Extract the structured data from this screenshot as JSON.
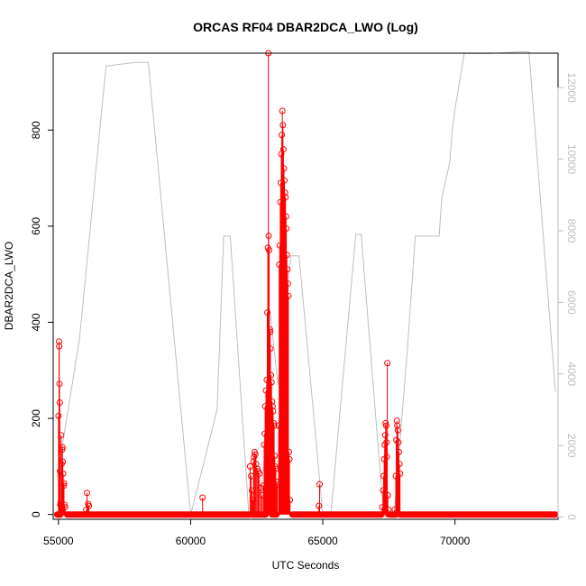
{
  "chart_data": {
    "type": "scatter",
    "title": "ORCAS RF04 DBAR2DCA_LWO (Log)",
    "xlabel": "UTC Seconds",
    "ylabel": "DBAR2DCA_LWO",
    "y2label": "",
    "xlim": [
      54800,
      73900
    ],
    "ylim": [
      -10,
      960
    ],
    "y2lim": [
      -60,
      12960
    ],
    "x_ticks": [
      55000,
      60000,
      65000,
      70000
    ],
    "y_ticks": [
      0,
      200,
      400,
      600,
      800
    ],
    "y2_ticks": [
      0,
      2000,
      4000,
      6000,
      8000,
      10000,
      12000
    ],
    "grid": false,
    "legend": "none",
    "colors": {
      "series": "#ff0000",
      "secondary": "#bebebe",
      "axis": "#000000"
    },
    "series": [
      {
        "axis": "left",
        "marker": "open-circle",
        "baseline_segments": [
          [
            54950,
            55080
          ],
          [
            55330,
            62230
          ],
          [
            62330,
            62840
          ],
          [
            63080,
            63250
          ],
          [
            63850,
            67220
          ],
          [
            67480,
            67780
          ],
          [
            67920,
            73800
          ]
        ],
        "points": [
          [
            55000,
            205
          ],
          [
            55020,
            360
          ],
          [
            55030,
            350
          ],
          [
            55040,
            272
          ],
          [
            55050,
            233
          ],
          [
            55060,
            90
          ],
          [
            55070,
            20
          ],
          [
            55080,
            25
          ],
          [
            55100,
            165
          ],
          [
            55120,
            105
          ],
          [
            55140,
            135
          ],
          [
            55150,
            140
          ],
          [
            55160,
            110
          ],
          [
            55180,
            85
          ],
          [
            55200,
            60
          ],
          [
            55210,
            65
          ],
          [
            55230,
            20
          ],
          [
            55250,
            15
          ],
          [
            56050,
            10
          ],
          [
            56080,
            45
          ],
          [
            56120,
            22
          ],
          [
            56150,
            18
          ],
          [
            60450,
            35
          ],
          [
            62250,
            100
          ],
          [
            62290,
            80
          ],
          [
            62320,
            50
          ],
          [
            62350,
            30
          ],
          [
            62380,
            110
          ],
          [
            62400,
            120
          ],
          [
            62420,
            130
          ],
          [
            62450,
            125
          ],
          [
            62480,
            105
          ],
          [
            62520,
            95
          ],
          [
            62560,
            90
          ],
          [
            62600,
            85
          ],
          [
            62650,
            55
          ],
          [
            62700,
            40
          ],
          [
            62750,
            60
          ],
          [
            62780,
            145
          ],
          [
            62800,
            168
          ],
          [
            62820,
            225
          ],
          [
            62850,
            258
          ],
          [
            62880,
            280
          ],
          [
            62900,
            420
          ],
          [
            62920,
            555
          ],
          [
            62940,
            960
          ],
          [
            62950,
            580
          ],
          [
            62970,
            550
          ],
          [
            63000,
            385
          ],
          [
            63010,
            380
          ],
          [
            63020,
            345
          ],
          [
            63040,
            290
          ],
          [
            63060,
            275
          ],
          [
            63080,
            235
          ],
          [
            63100,
            225
          ],
          [
            63120,
            215
          ],
          [
            63140,
            190
          ],
          [
            63160,
            185
          ],
          [
            63180,
            122
          ],
          [
            63200,
            100
          ],
          [
            63220,
            95
          ],
          [
            63250,
            68
          ],
          [
            63280,
            62
          ],
          [
            63330,
            185
          ],
          [
            63350,
            520
          ],
          [
            63370,
            560
          ],
          [
            63390,
            650
          ],
          [
            63410,
            690
          ],
          [
            63430,
            750
          ],
          [
            63450,
            790
          ],
          [
            63470,
            840
          ],
          [
            63490,
            810
          ],
          [
            63510,
            760
          ],
          [
            63530,
            720
          ],
          [
            63550,
            695
          ],
          [
            63570,
            670
          ],
          [
            63590,
            660
          ],
          [
            63610,
            620
          ],
          [
            63620,
            595
          ],
          [
            63640,
            540
          ],
          [
            63660,
            510
          ],
          [
            63680,
            480
          ],
          [
            63700,
            455
          ],
          [
            63720,
            130
          ],
          [
            63740,
            115
          ],
          [
            63760,
            30
          ],
          [
            64850,
            18
          ],
          [
            64880,
            63
          ],
          [
            67250,
            15
          ],
          [
            67280,
            50
          ],
          [
            67300,
            80
          ],
          [
            67320,
            115
          ],
          [
            67340,
            145
          ],
          [
            67360,
            165
          ],
          [
            67380,
            190
          ],
          [
            67400,
            185
          ],
          [
            67410,
            150
          ],
          [
            67420,
            120
          ],
          [
            67440,
            315
          ],
          [
            67460,
            40
          ],
          [
            67480,
            10
          ],
          [
            67720,
            10
          ],
          [
            67760,
            80
          ],
          [
            67780,
            155
          ],
          [
            67800,
            195
          ],
          [
            67820,
            185
          ],
          [
            67840,
            175
          ],
          [
            67860,
            150
          ],
          [
            67880,
            130
          ],
          [
            67900,
            105
          ],
          [
            67920,
            85
          ]
        ]
      },
      {
        "axis": "right",
        "marker": "line",
        "color": "#bebebe",
        "points": [
          [
            54950,
            1100
          ],
          [
            55800,
            5000
          ],
          [
            56800,
            12600
          ],
          [
            57900,
            12700
          ],
          [
            58400,
            12700
          ],
          [
            60000,
            60
          ],
          [
            61000,
            3000
          ],
          [
            61250,
            7850
          ],
          [
            61500,
            7850
          ],
          [
            62200,
            80
          ],
          [
            62500,
            80
          ],
          [
            62600,
            200
          ],
          [
            62900,
            2500
          ],
          [
            63000,
            5800
          ],
          [
            63300,
            3700
          ],
          [
            63600,
            6000
          ],
          [
            63800,
            7300
          ],
          [
            64100,
            7300
          ],
          [
            65000,
            60
          ],
          [
            65300,
            60
          ],
          [
            66250,
            7900
          ],
          [
            66450,
            7900
          ],
          [
            67300,
            50
          ],
          [
            67700,
            60
          ],
          [
            68200,
            4700
          ],
          [
            68500,
            7850
          ],
          [
            69400,
            7850
          ],
          [
            69500,
            8900
          ],
          [
            69800,
            9900
          ],
          [
            69900,
            10800
          ],
          [
            70000,
            11400
          ],
          [
            70350,
            12950
          ],
          [
            71300,
            12950
          ],
          [
            72500,
            13000
          ],
          [
            72800,
            13000
          ],
          [
            73800,
            3500
          ]
        ]
      }
    ]
  }
}
